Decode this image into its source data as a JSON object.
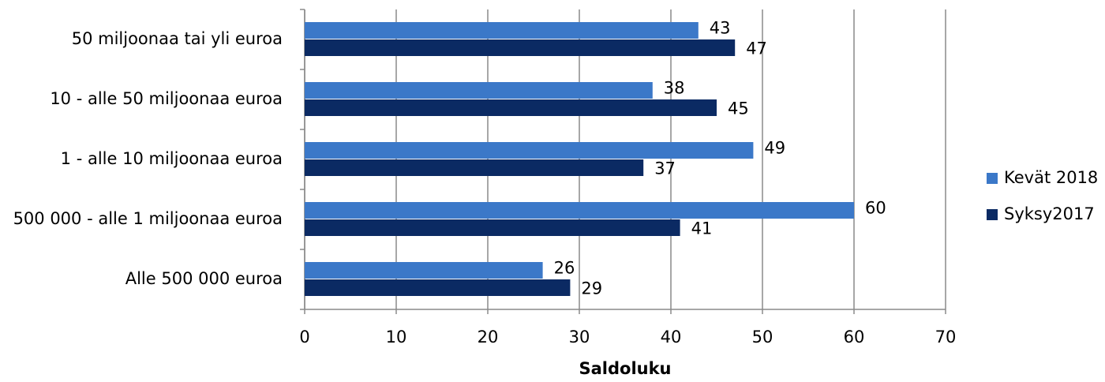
{
  "chart_data": {
    "type": "bar",
    "orientation": "horizontal",
    "x_label": "Saldoluku",
    "categories": [
      "50 miljoonaa tai yli euroa",
      "10 - alle 50 miljoonaa euroa",
      "1 - alle 10 miljoonaa euroa",
      "500 000 - alle 1 miljoonaa euroa",
      "Alle 500 000 euroa"
    ],
    "series": [
      {
        "name": "Kevät 2018",
        "color": "#3b78c8",
        "values": [
          43,
          38,
          49,
          60,
          26
        ]
      },
      {
        "name": "Syksy2017",
        "color": "#0b2a63",
        "values": [
          47,
          45,
          37,
          41,
          29
        ]
      }
    ],
    "xlim": [
      0,
      70
    ],
    "xticks": [
      0,
      10,
      20,
      30,
      40,
      50,
      60,
      70
    ],
    "grid": true,
    "legend": "right"
  }
}
